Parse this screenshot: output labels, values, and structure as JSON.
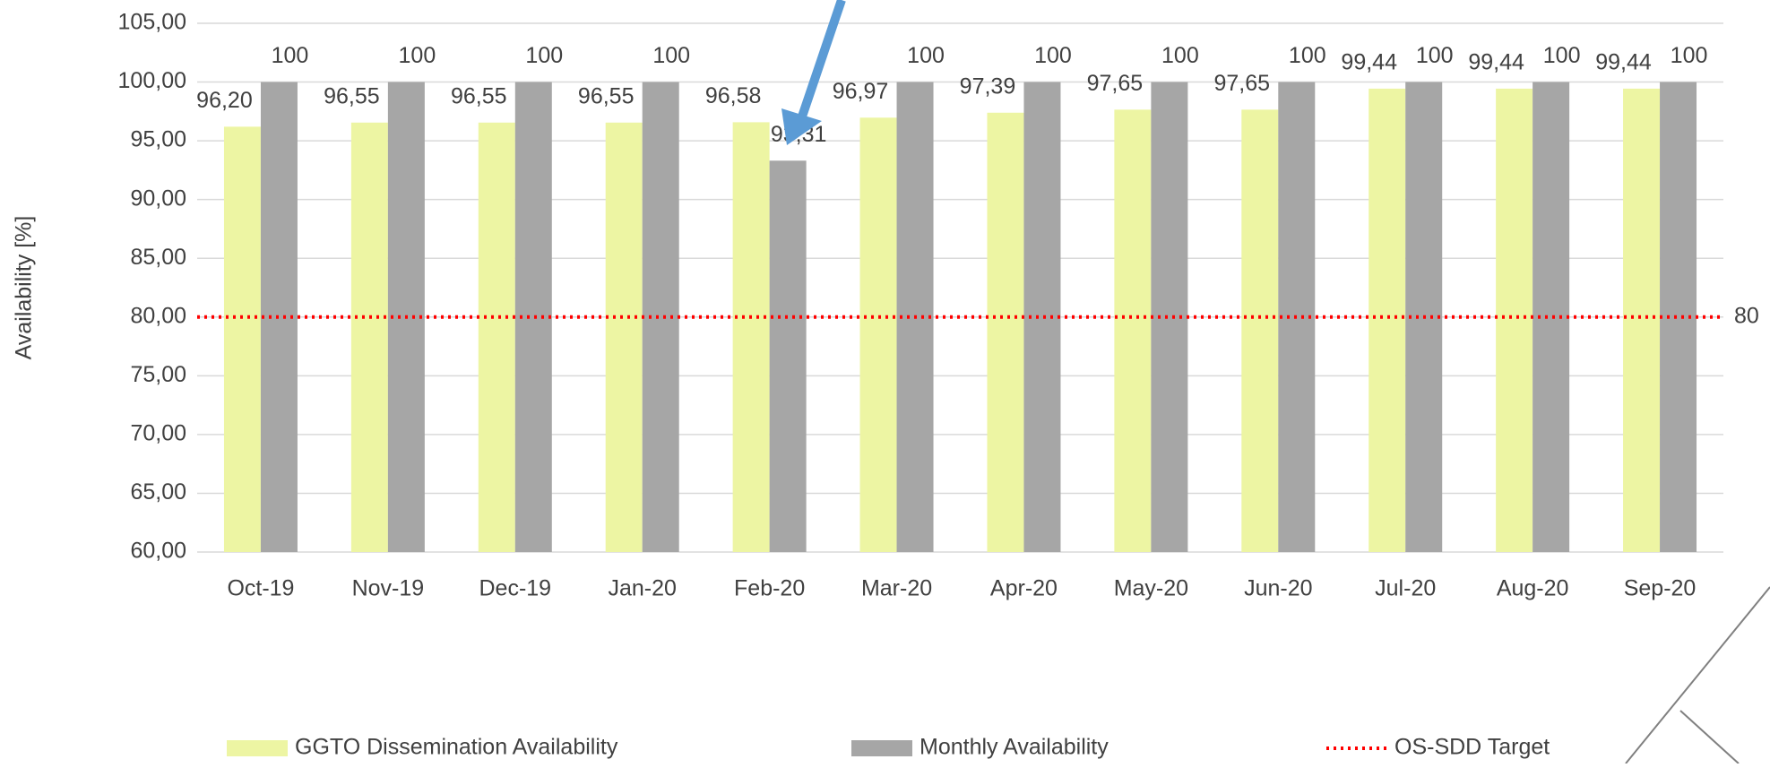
{
  "chart_data": {
    "type": "bar",
    "y_label": "Availability [%]",
    "categories": [
      "Oct-19",
      "Nov-19",
      "Dec-19",
      "Jan-20",
      "Feb-20",
      "Mar-20",
      "Apr-20",
      "May-20",
      "Jun-20",
      "Jul-20",
      "Aug-20",
      "Sep-20"
    ],
    "series": [
      {
        "name": "GGTO Dissemination Availability",
        "color": "#edf5a3",
        "values": [
          96.2,
          96.55,
          96.55,
          96.55,
          96.58,
          96.97,
          97.39,
          97.65,
          97.65,
          99.44,
          99.44,
          99.44
        ],
        "value_labels": [
          "96,20",
          "96,55",
          "96,55",
          "96,55",
          "96,58",
          "96,97",
          "97,39",
          "97,65",
          "97,65",
          "99,44",
          "99,44",
          "99,44"
        ]
      },
      {
        "name": "Monthly Availability",
        "color": "#a6a6a6",
        "values": [
          100,
          100,
          100,
          100,
          93.31,
          100,
          100,
          100,
          100,
          100,
          100,
          100
        ],
        "value_labels": [
          "100",
          "100",
          "100",
          "100",
          "93,31",
          "100",
          "100",
          "100",
          "100",
          "100",
          "100",
          "100"
        ]
      }
    ],
    "target": {
      "name": "OS-SDD Target",
      "value": 80,
      "color": "#ff0000"
    },
    "ylim": [
      60,
      105
    ],
    "yticks": [
      {
        "value": 60,
        "label": "60,00"
      },
      {
        "value": 65,
        "label": "65,00"
      },
      {
        "value": 70,
        "label": "70,00"
      },
      {
        "value": 75,
        "label": "75,00"
      },
      {
        "value": 80,
        "label": "80,00"
      },
      {
        "value": 85,
        "label": "85,00"
      },
      {
        "value": 90,
        "label": "90,00"
      },
      {
        "value": 95,
        "label": "95,00"
      },
      {
        "value": 100,
        "label": "100,00"
      },
      {
        "value": 105,
        "label": "105,00"
      }
    ],
    "grid": true
  }
}
